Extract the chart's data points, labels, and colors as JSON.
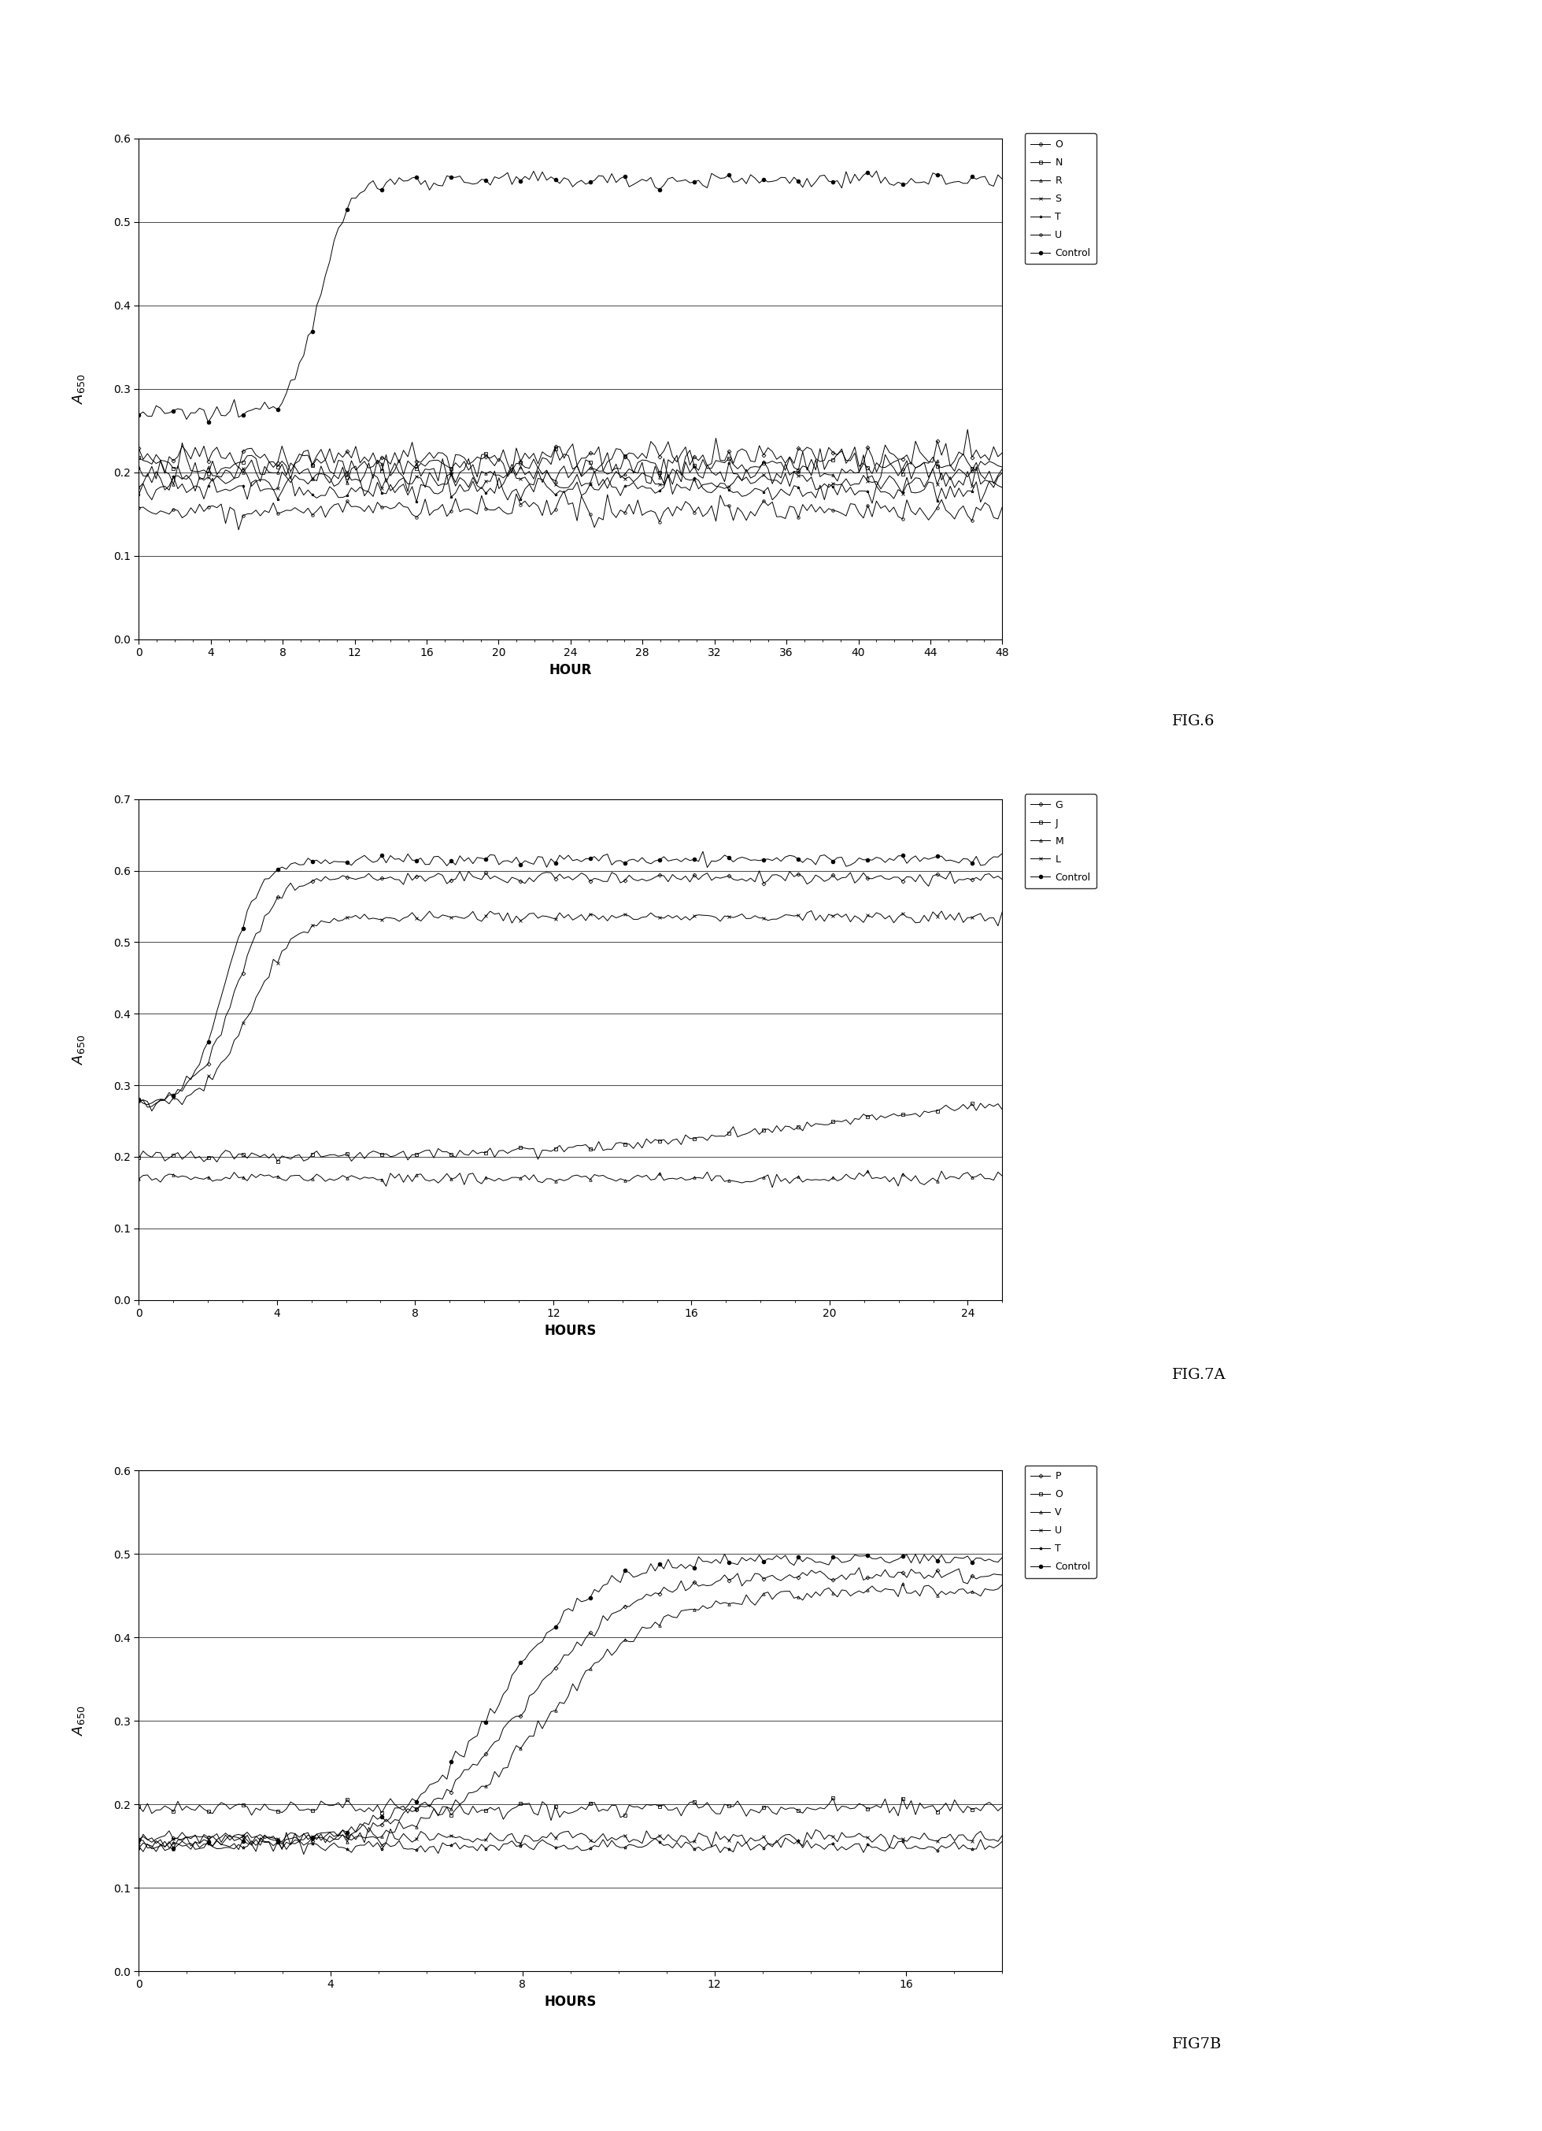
{
  "fig6": {
    "title": "FIG.6",
    "xlabel": "HOUR",
    "ylabel": "A650",
    "xlim": [
      0,
      48
    ],
    "ylim": [
      0,
      0.6
    ],
    "yticks": [
      0,
      0.1,
      0.2,
      0.3,
      0.4,
      0.5,
      0.6
    ],
    "xticks": [
      0,
      4,
      8,
      12,
      16,
      20,
      24,
      28,
      32,
      36,
      40,
      44,
      48
    ],
    "legend": [
      "O",
      "N",
      "R",
      "S",
      "T",
      "U",
      "Control"
    ]
  },
  "fig7a": {
    "title": "FIG.7A",
    "xlabel": "HOURS",
    "ylabel": "A650",
    "xlim": [
      0,
      25
    ],
    "ylim": [
      0,
      0.7
    ],
    "yticks": [
      0,
      0.1,
      0.2,
      0.3,
      0.4,
      0.5,
      0.6,
      0.7
    ],
    "xticks": [
      0,
      4,
      8,
      12,
      16,
      20,
      24
    ],
    "legend": [
      "G",
      "J",
      "M",
      "L",
      "Control"
    ]
  },
  "fig7b": {
    "title": "FIG7B",
    "xlabel": "HOURS",
    "ylabel": "A650",
    "xlim": [
      0,
      18
    ],
    "ylim": [
      0,
      0.6
    ],
    "yticks": [
      0,
      0.1,
      0.2,
      0.3,
      0.4,
      0.5,
      0.6
    ],
    "xticks": [
      0,
      4,
      8,
      12,
      16
    ],
    "legend": [
      "P",
      "O",
      "V",
      "U",
      "T",
      "Control"
    ]
  },
  "background_color": "#ffffff",
  "line_color": "#000000",
  "marker_size": 2.5,
  "line_width": 0.7,
  "font_size": 12,
  "tick_font_size": 10,
  "legend_font_size": 9
}
